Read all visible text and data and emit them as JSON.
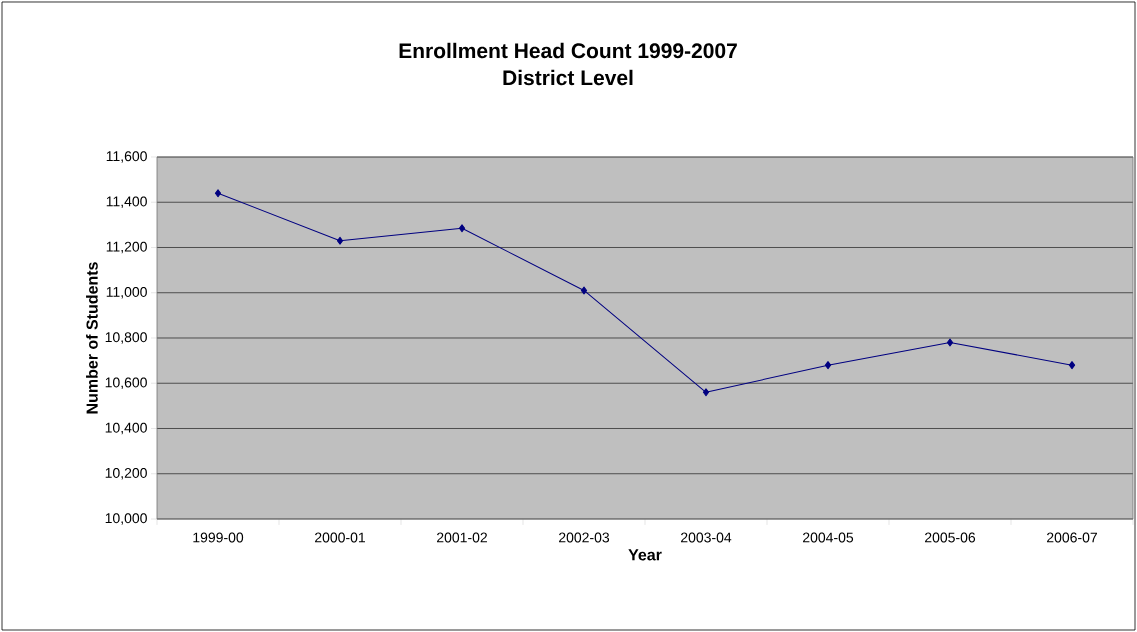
{
  "chart_data": {
    "type": "line",
    "title": "Enrollment Head Count 1999-2007\nDistrict Level",
    "xlabel": "Year",
    "ylabel": "Number of Students",
    "categories": [
      "1999-00",
      "2000-01",
      "2001-02",
      "2002-03",
      "2003-04",
      "2004-05",
      "2005-06",
      "2006-07"
    ],
    "values": [
      11440,
      11230,
      11285,
      11010,
      10560,
      10680,
      10780,
      10680
    ],
    "color": "#000080",
    "marker": "diamond",
    "line_style": "solid",
    "ylim": [
      10000,
      11600
    ],
    "yticks": [
      {
        "value": 10000,
        "label": "10,000"
      },
      {
        "value": 10200,
        "label": "10,200"
      },
      {
        "value": 10400,
        "label": "10,400"
      },
      {
        "value": 10600,
        "label": "10,600"
      },
      {
        "value": 10800,
        "label": "10,800"
      },
      {
        "value": 11000,
        "label": "11,000"
      },
      {
        "value": 11200,
        "label": "11,200"
      },
      {
        "value": 11400,
        "label": "11,400"
      },
      {
        "value": 11600,
        "label": "11,600"
      }
    ],
    "grid": "y"
  }
}
